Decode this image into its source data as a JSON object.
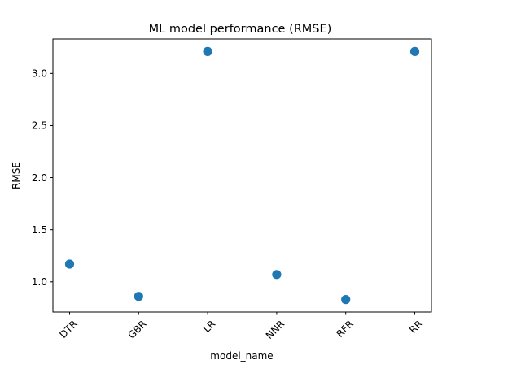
{
  "chart_data": {
    "type": "scatter",
    "title": "ML model performance (RMSE)",
    "xlabel": "model_name",
    "ylabel": "RMSE",
    "categories": [
      "DTR",
      "GBR",
      "LR",
      "NNR",
      "RFR",
      "RR"
    ],
    "values": [
      1.17,
      0.86,
      3.21,
      1.07,
      0.83,
      3.21
    ],
    "ylim": [
      0.71,
      3.33
    ],
    "yticks": [
      1.0,
      1.5,
      2.0,
      2.5,
      3.0
    ],
    "ytick_labels": [
      "1.0",
      "1.5",
      "2.0",
      "2.5",
      "3.0"
    ],
    "grid": false,
    "marker_color": "#1f77b4"
  }
}
